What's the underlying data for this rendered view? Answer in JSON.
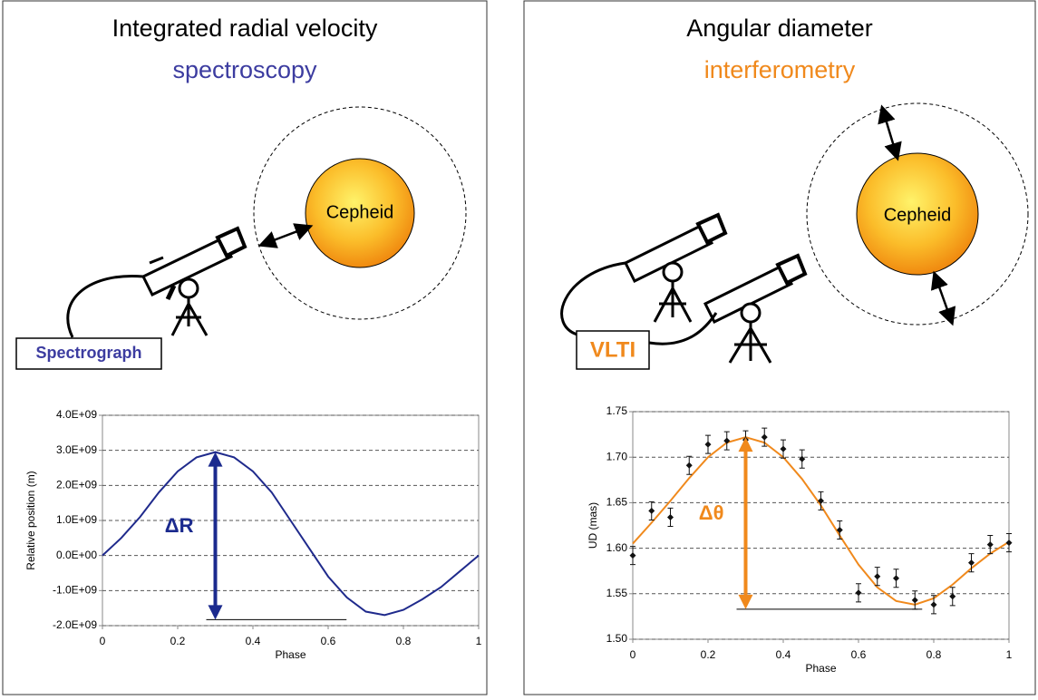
{
  "panels": [
    {
      "title": "Integrated radial velocity",
      "subtitle": "spectroscopy",
      "star": "Cepheid",
      "instrument": "Spectrograph"
    },
    {
      "title": "Angular diameter",
      "subtitle": "interferometry",
      "star": "Cepheid",
      "instrument": "VLTI"
    }
  ],
  "chart_data": [
    {
      "type": "line",
      "x_label": "Phase",
      "y_label": "Relative position (m)",
      "annotation": "ΔR",
      "annotation_color": "#1b2a8e",
      "xlim": [
        0,
        1
      ],
      "xticks": [
        0,
        0.2,
        0.4,
        0.6,
        0.8,
        1
      ],
      "ylim": [
        -2000000000,
        4000000000
      ],
      "yticks": [
        {
          "value": -2000000000,
          "label": "-2.0E+09"
        },
        {
          "value": -1000000000,
          "label": "-1.0E+09"
        },
        {
          "value": 0,
          "label": "0.0E+00"
        },
        {
          "value": 1000000000,
          "label": "1.0E+09"
        },
        {
          "value": 2000000000,
          "label": "2.0E+09"
        },
        {
          "value": 3000000000,
          "label": "3.0E+09"
        },
        {
          "value": 4000000000,
          "label": "4.0E+09"
        }
      ],
      "grid": true,
      "series": [
        {
          "type": "line",
          "color": "#1f2a8c",
          "x": [
            0,
            0.05,
            0.1,
            0.15,
            0.2,
            0.25,
            0.3,
            0.35,
            0.4,
            0.45,
            0.5,
            0.55,
            0.6,
            0.65,
            0.7,
            0.75,
            0.8,
            0.85,
            0.9,
            0.95,
            1
          ],
          "values": [
            0,
            500000000,
            1100000000,
            1800000000,
            2400000000,
            2800000000,
            2950000000,
            2800000000,
            2400000000,
            1800000000,
            1000000000,
            200000000,
            -600000000,
            -1200000000,
            -1600000000,
            -1700000000,
            -1550000000,
            -1250000000,
            -900000000,
            -450000000,
            0
          ]
        }
      ]
    },
    {
      "type": "scatter",
      "x_label": "Phase",
      "y_label": "UD (mas)",
      "annotation": "Δθ",
      "annotation_color": "#f0891c",
      "xlim": [
        0,
        1
      ],
      "xticks": [
        0,
        0.2,
        0.4,
        0.6,
        0.8,
        1
      ],
      "ylim": [
        1.5,
        1.75
      ],
      "yticks": [
        {
          "value": 1.5,
          "label": "1.50"
        },
        1.55,
        {
          "value": 1.6,
          "label": "1.60"
        },
        1.65,
        {
          "value": 1.7,
          "label": "1.70"
        },
        1.75
      ],
      "grid": true,
      "series": [
        {
          "type": "line",
          "color": "#f0891c",
          "x": [
            0,
            0.05,
            0.1,
            0.15,
            0.2,
            0.25,
            0.3,
            0.35,
            0.4,
            0.45,
            0.5,
            0.55,
            0.6,
            0.65,
            0.7,
            0.75,
            0.8,
            0.85,
            0.9,
            0.95,
            1
          ],
          "values": [
            1.605,
            1.628,
            1.652,
            1.677,
            1.7,
            1.716,
            1.722,
            1.716,
            1.7,
            1.676,
            1.647,
            1.614,
            1.582,
            1.557,
            1.542,
            1.538,
            1.545,
            1.56,
            1.578,
            1.594,
            1.607
          ]
        },
        {
          "type": "scatter",
          "color": "#111111",
          "x": [
            0,
            0.05,
            0.1,
            0.15,
            0.2,
            0.25,
            0.3,
            0.35,
            0.4,
            0.45,
            0.5,
            0.55,
            0.6,
            0.65,
            0.7,
            0.75,
            0.8,
            0.85,
            0.9,
            0.95,
            1
          ],
          "values": [
            1.592,
            1.641,
            1.634,
            1.691,
            1.714,
            1.718,
            1.719,
            1.722,
            1.709,
            1.698,
            1.652,
            1.62,
            1.551,
            1.569,
            1.567,
            1.543,
            1.538,
            1.547,
            1.584,
            1.604,
            1.606
          ],
          "errors": [
            0.01,
            0.01,
            0.01,
            0.01,
            0.01,
            0.01,
            0.01,
            0.01,
            0.01,
            0.01,
            0.01,
            0.01,
            0.01,
            0.01,
            0.01,
            0.01,
            0.01,
            0.01,
            0.01,
            0.01,
            0.01
          ]
        }
      ]
    }
  ]
}
